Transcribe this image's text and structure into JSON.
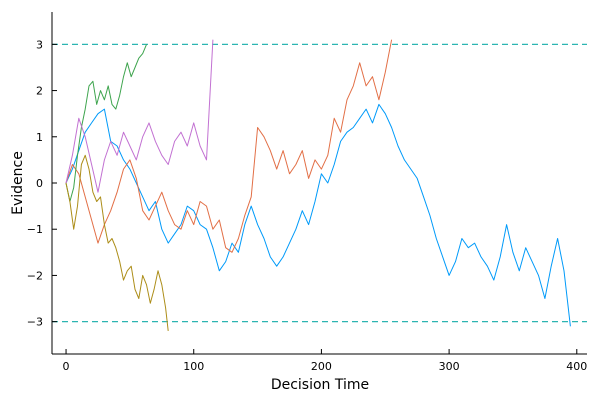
{
  "chart_data": {
    "type": "line",
    "title": "",
    "xlabel": "Decision Time",
    "ylabel": "Evidence",
    "xlim": [
      -11,
      408
    ],
    "ylim": [
      -3.7,
      3.7
    ],
    "xticks": [
      0,
      100,
      200,
      300,
      400
    ],
    "xtick_labels": [
      "0",
      "100",
      "200",
      "300",
      "400"
    ],
    "yticks": [
      -3,
      -2,
      -1,
      0,
      1,
      2,
      3
    ],
    "ytick_labels": [
      "−3",
      "−2",
      "−1",
      "0",
      "1",
      "2",
      "3"
    ],
    "grid": false,
    "legend": "none",
    "thresholds": [
      {
        "y": 3,
        "color": "#2cb5b1"
      },
      {
        "y": -3,
        "color": "#2cb5b1"
      }
    ],
    "series": [
      {
        "color": "#009af9",
        "x": [
          0,
          5,
          10,
          15,
          20,
          25,
          30,
          35,
          40,
          45,
          50,
          55,
          60,
          65,
          70,
          75,
          80,
          85,
          90,
          95,
          100,
          105,
          110,
          115,
          120,
          125,
          130,
          135,
          140,
          145,
          150,
          155,
          160,
          165,
          170,
          175,
          180,
          185,
          190,
          195,
          200,
          205,
          210,
          215,
          220,
          225,
          230,
          235,
          240,
          245,
          250,
          255,
          260,
          265,
          270,
          275,
          280,
          285,
          290,
          295,
          300,
          305,
          310,
          315,
          320,
          325,
          330,
          335,
          340,
          345,
          350,
          355,
          360,
          365,
          370,
          375,
          380,
          385,
          390,
          395
        ],
        "y": [
          0,
          0.3,
          0.7,
          1.1,
          1.3,
          1.5,
          1.6,
          0.9,
          0.8,
          0.5,
          0.3,
          0.0,
          -0.3,
          -0.6,
          -0.4,
          -1.0,
          -1.3,
          -1.1,
          -0.9,
          -0.5,
          -0.6,
          -0.9,
          -1.0,
          -1.4,
          -1.9,
          -1.7,
          -1.3,
          -1.5,
          -0.9,
          -0.5,
          -0.9,
          -1.2,
          -1.6,
          -1.8,
          -1.6,
          -1.3,
          -1.0,
          -0.6,
          -0.9,
          -0.4,
          0.2,
          0.0,
          0.4,
          0.9,
          1.1,
          1.2,
          1.4,
          1.6,
          1.3,
          1.7,
          1.5,
          1.2,
          0.8,
          0.5,
          0.3,
          0.1,
          -0.3,
          -0.7,
          -1.2,
          -1.6,
          -2.0,
          -1.7,
          -1.2,
          -1.4,
          -1.3,
          -1.6,
          -1.8,
          -2.1,
          -1.6,
          -0.9,
          -1.5,
          -1.9,
          -1.4,
          -1.7,
          -2.0,
          -2.5,
          -1.8,
          -1.2,
          -1.9,
          -3.1
        ]
      },
      {
        "color": "#e26f46",
        "x": [
          0,
          5,
          10,
          15,
          20,
          25,
          30,
          35,
          40,
          45,
          50,
          55,
          60,
          65,
          70,
          75,
          80,
          85,
          90,
          95,
          100,
          105,
          110,
          115,
          120,
          125,
          130,
          135,
          140,
          145,
          150,
          155,
          160,
          165,
          170,
          175,
          180,
          185,
          190,
          195,
          200,
          205,
          210,
          215,
          220,
          225,
          230,
          235,
          240,
          245,
          250,
          255
        ],
        "y": [
          0,
          0.4,
          0.2,
          -0.3,
          -0.8,
          -1.3,
          -0.9,
          -0.6,
          -0.2,
          0.3,
          0.5,
          0.1,
          -0.6,
          -0.8,
          -0.5,
          -0.2,
          -0.6,
          -0.9,
          -1.0,
          -0.6,
          -0.9,
          -0.4,
          -0.5,
          -1.0,
          -0.8,
          -1.4,
          -1.5,
          -1.2,
          -0.7,
          -0.3,
          1.2,
          1.0,
          0.7,
          0.3,
          0.7,
          0.2,
          0.4,
          0.7,
          0.1,
          0.5,
          0.3,
          0.6,
          1.4,
          1.1,
          1.8,
          2.1,
          2.6,
          2.1,
          2.3,
          1.8,
          2.4,
          3.1
        ]
      },
      {
        "color": "#3da44d",
        "x": [
          0,
          3,
          6,
          9,
          12,
          15,
          18,
          21,
          24,
          27,
          30,
          33,
          36,
          39,
          42,
          45,
          48,
          51,
          54,
          57,
          60,
          63
        ],
        "y": [
          0,
          -0.4,
          -0.1,
          0.6,
          1.2,
          1.6,
          2.1,
          2.2,
          1.7,
          2.0,
          1.8,
          2.1,
          1.7,
          1.6,
          1.9,
          2.3,
          2.6,
          2.3,
          2.5,
          2.7,
          2.8,
          3.0
        ]
      },
      {
        "color": "#c271d2",
        "x": [
          0,
          5,
          10,
          15,
          20,
          25,
          30,
          35,
          40,
          45,
          50,
          55,
          60,
          65,
          70,
          75,
          80,
          85,
          90,
          95,
          100,
          105,
          110,
          115
        ],
        "y": [
          0,
          0.6,
          1.4,
          1.0,
          0.4,
          -0.2,
          0.5,
          0.9,
          0.6,
          1.1,
          0.8,
          0.5,
          1.0,
          1.3,
          0.9,
          0.6,
          0.4,
          0.9,
          1.1,
          0.8,
          1.3,
          0.8,
          0.5,
          3.1
        ]
      },
      {
        "color": "#ac8d18",
        "x": [
          0,
          3,
          6,
          9,
          12,
          15,
          18,
          21,
          24,
          27,
          30,
          33,
          36,
          39,
          42,
          45,
          48,
          51,
          54,
          57,
          60,
          63,
          66,
          69,
          72,
          75,
          78,
          80
        ],
        "y": [
          0,
          -0.4,
          -1.0,
          -0.5,
          0.4,
          0.6,
          0.3,
          -0.2,
          -0.4,
          -0.3,
          -0.9,
          -1.3,
          -1.2,
          -1.4,
          -1.7,
          -2.1,
          -1.9,
          -1.8,
          -2.3,
          -2.5,
          -2.0,
          -2.2,
          -2.6,
          -2.3,
          -1.9,
          -2.2,
          -2.7,
          -3.2
        ]
      }
    ]
  }
}
